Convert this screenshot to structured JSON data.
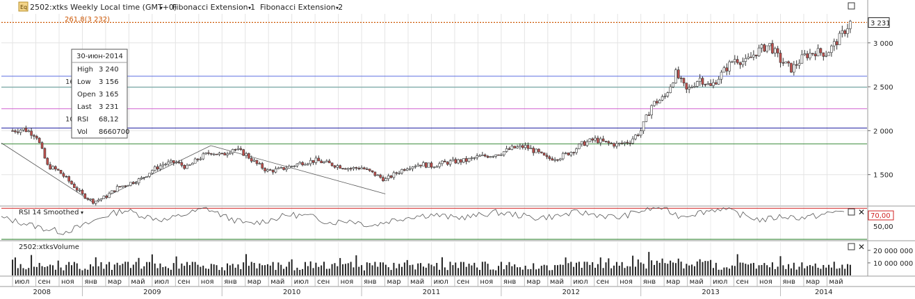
{
  "header": {
    "icon_label": "Eq",
    "symbol_title": "2502:xtks Weekly Local time (GMT+0)",
    "fib1": "Fibonacci Extension 1",
    "fib2": "Fibonacci Extension 2",
    "fib_marker": "261,8(3 232)"
  },
  "info_box": {
    "date": "30-июн-2014",
    "rows": [
      {
        "label": "High",
        "value": "3 240"
      },
      {
        "label": "Low",
        "value": "3 156"
      },
      {
        "label": "Open",
        "value": "3 165"
      },
      {
        "label": "Last",
        "value": "3 231"
      },
      {
        "label": "RSI",
        "value": "68,12"
      },
      {
        "label": "Vol",
        "value": "8660700"
      }
    ]
  },
  "side_labels": {
    "a": "16",
    "b": "10"
  },
  "rsi_panel": {
    "title": "RSI 14 Smoothed",
    "overbought_label": "70,00",
    "mid_label": "50,00"
  },
  "volume_panel": {
    "title": "2502:xtksVolume"
  },
  "colors": {
    "up": "#ffffff",
    "down": "#c0504d",
    "accent": "#e05a00",
    "fib_orange": "#cc5500",
    "fib_blue": "#5b6ee1",
    "fib_teal": "#5e9a96",
    "fib_pink": "#d060d0",
    "fib_navy": "#1a1a9e",
    "fib_green": "#3a8a3a",
    "rsi_upper": "#d02020",
    "rsi_lower": "#1e7a1e"
  },
  "chart_data": [
    {
      "type": "candlestick",
      "title": "2502:xtks Weekly",
      "ylim": [
        1150,
        3330
      ],
      "y_ticks": [
        "1 500",
        "2 000",
        "2 500",
        "3 000"
      ],
      "y_tick_values": [
        1500,
        2000,
        2500,
        3000
      ],
      "last_price_label": "3 231",
      "last_price": 3231,
      "fib_levels": [
        3232,
        2620,
        2495,
        2250,
        2030,
        1850
      ],
      "x_month_labels": [
        "июл",
        "сен",
        "ноя",
        "янв",
        "мар",
        "май",
        "июл",
        "сен",
        "ноя",
        "янв",
        "мар",
        "май",
        "июл",
        "сен",
        "ноя",
        "янв",
        "мар",
        "май",
        "июл",
        "сен",
        "ноя",
        "янв",
        "мар",
        "май",
        "июл",
        "сен",
        "ноя",
        "янв",
        "мар",
        "май",
        "июл",
        "сен",
        "ноя",
        "янв",
        "мар",
        "май"
      ],
      "x_year_labels": [
        "2008",
        "2009",
        "2010",
        "2011",
        "2012",
        "2013",
        "2014"
      ],
      "x_year_values": [
        2008,
        2009,
        2010,
        2011,
        2012,
        2013,
        2014
      ],
      "close_path": [
        [
          2008.5,
          2000
        ],
        [
          2008.58,
          2020
        ],
        [
          2008.67,
          1950
        ],
        [
          2008.75,
          1600
        ],
        [
          2008.83,
          1540
        ],
        [
          2008.92,
          1400
        ],
        [
          2009.0,
          1270
        ],
        [
          2009.08,
          1190
        ],
        [
          2009.17,
          1250
        ],
        [
          2009.25,
          1350
        ],
        [
          2009.42,
          1450
        ],
        [
          2009.5,
          1550
        ],
        [
          2009.58,
          1620
        ],
        [
          2009.67,
          1640
        ],
        [
          2009.75,
          1580
        ],
        [
          2009.83,
          1680
        ],
        [
          2009.92,
          1760
        ],
        [
          2010.0,
          1720
        ],
        [
          2010.08,
          1800
        ],
        [
          2010.17,
          1730
        ],
        [
          2010.25,
          1620
        ],
        [
          2010.33,
          1540
        ],
        [
          2010.42,
          1560
        ],
        [
          2010.5,
          1600
        ],
        [
          2010.58,
          1640
        ],
        [
          2010.67,
          1660
        ],
        [
          2010.75,
          1630
        ],
        [
          2010.83,
          1600
        ],
        [
          2010.92,
          1570
        ],
        [
          2011.0,
          1580
        ],
        [
          2011.17,
          1440
        ],
        [
          2011.25,
          1520
        ],
        [
          2011.33,
          1590
        ],
        [
          2011.42,
          1620
        ],
        [
          2011.5,
          1600
        ],
        [
          2011.58,
          1630
        ],
        [
          2011.67,
          1650
        ],
        [
          2011.75,
          1660
        ],
        [
          2011.83,
          1700
        ],
        [
          2011.92,
          1720
        ],
        [
          2012.0,
          1750
        ],
        [
          2012.08,
          1800
        ],
        [
          2012.17,
          1820
        ],
        [
          2012.25,
          1760
        ],
        [
          2012.33,
          1680
        ],
        [
          2012.42,
          1700
        ],
        [
          2012.5,
          1760
        ],
        [
          2012.58,
          1850
        ],
        [
          2012.67,
          1900
        ],
        [
          2012.75,
          1860
        ],
        [
          2012.83,
          1840
        ],
        [
          2012.92,
          1880
        ],
        [
          2013.0,
          2000
        ],
        [
          2013.08,
          2300
        ],
        [
          2013.17,
          2380
        ],
        [
          2013.25,
          2650
        ],
        [
          2013.33,
          2450
        ],
        [
          2013.42,
          2600
        ],
        [
          2013.5,
          2500
        ],
        [
          2013.58,
          2650
        ],
        [
          2013.67,
          2820
        ],
        [
          2013.75,
          2780
        ],
        [
          2013.83,
          2900
        ],
        [
          2013.92,
          2980
        ],
        [
          2014.0,
          2800
        ],
        [
          2014.08,
          2700
        ],
        [
          2014.17,
          2850
        ],
        [
          2014.25,
          2900
        ],
        [
          2014.33,
          2880
        ],
        [
          2014.42,
          3050
        ],
        [
          2014.5,
          3231
        ]
      ]
    },
    {
      "type": "line",
      "title": "RSI 14 Smoothed",
      "ylim": [
        30,
        72
      ],
      "y_ticks": [
        "70,00",
        "50,00"
      ],
      "y_tick_values": [
        70,
        50
      ],
      "series": [
        {
          "name": "RSI 14 Smoothed",
          "values": [
            58,
            52,
            45,
            40,
            48,
            60,
            68,
            60,
            55,
            63,
            70,
            58,
            50,
            55,
            62,
            60,
            52,
            55,
            48,
            55,
            60,
            62,
            58,
            60,
            65,
            62,
            58,
            60,
            65,
            62,
            58,
            66,
            72,
            60,
            65,
            70,
            62,
            55,
            60,
            58,
            62,
            68
          ]
        }
      ]
    },
    {
      "type": "bar",
      "title": "2502:xtksVolume",
      "ylim": [
        0,
        26000000
      ],
      "y_ticks": [
        "20 000 000",
        "10 000 000"
      ],
      "y_tick_values": [
        20000000,
        10000000
      ]
    }
  ]
}
